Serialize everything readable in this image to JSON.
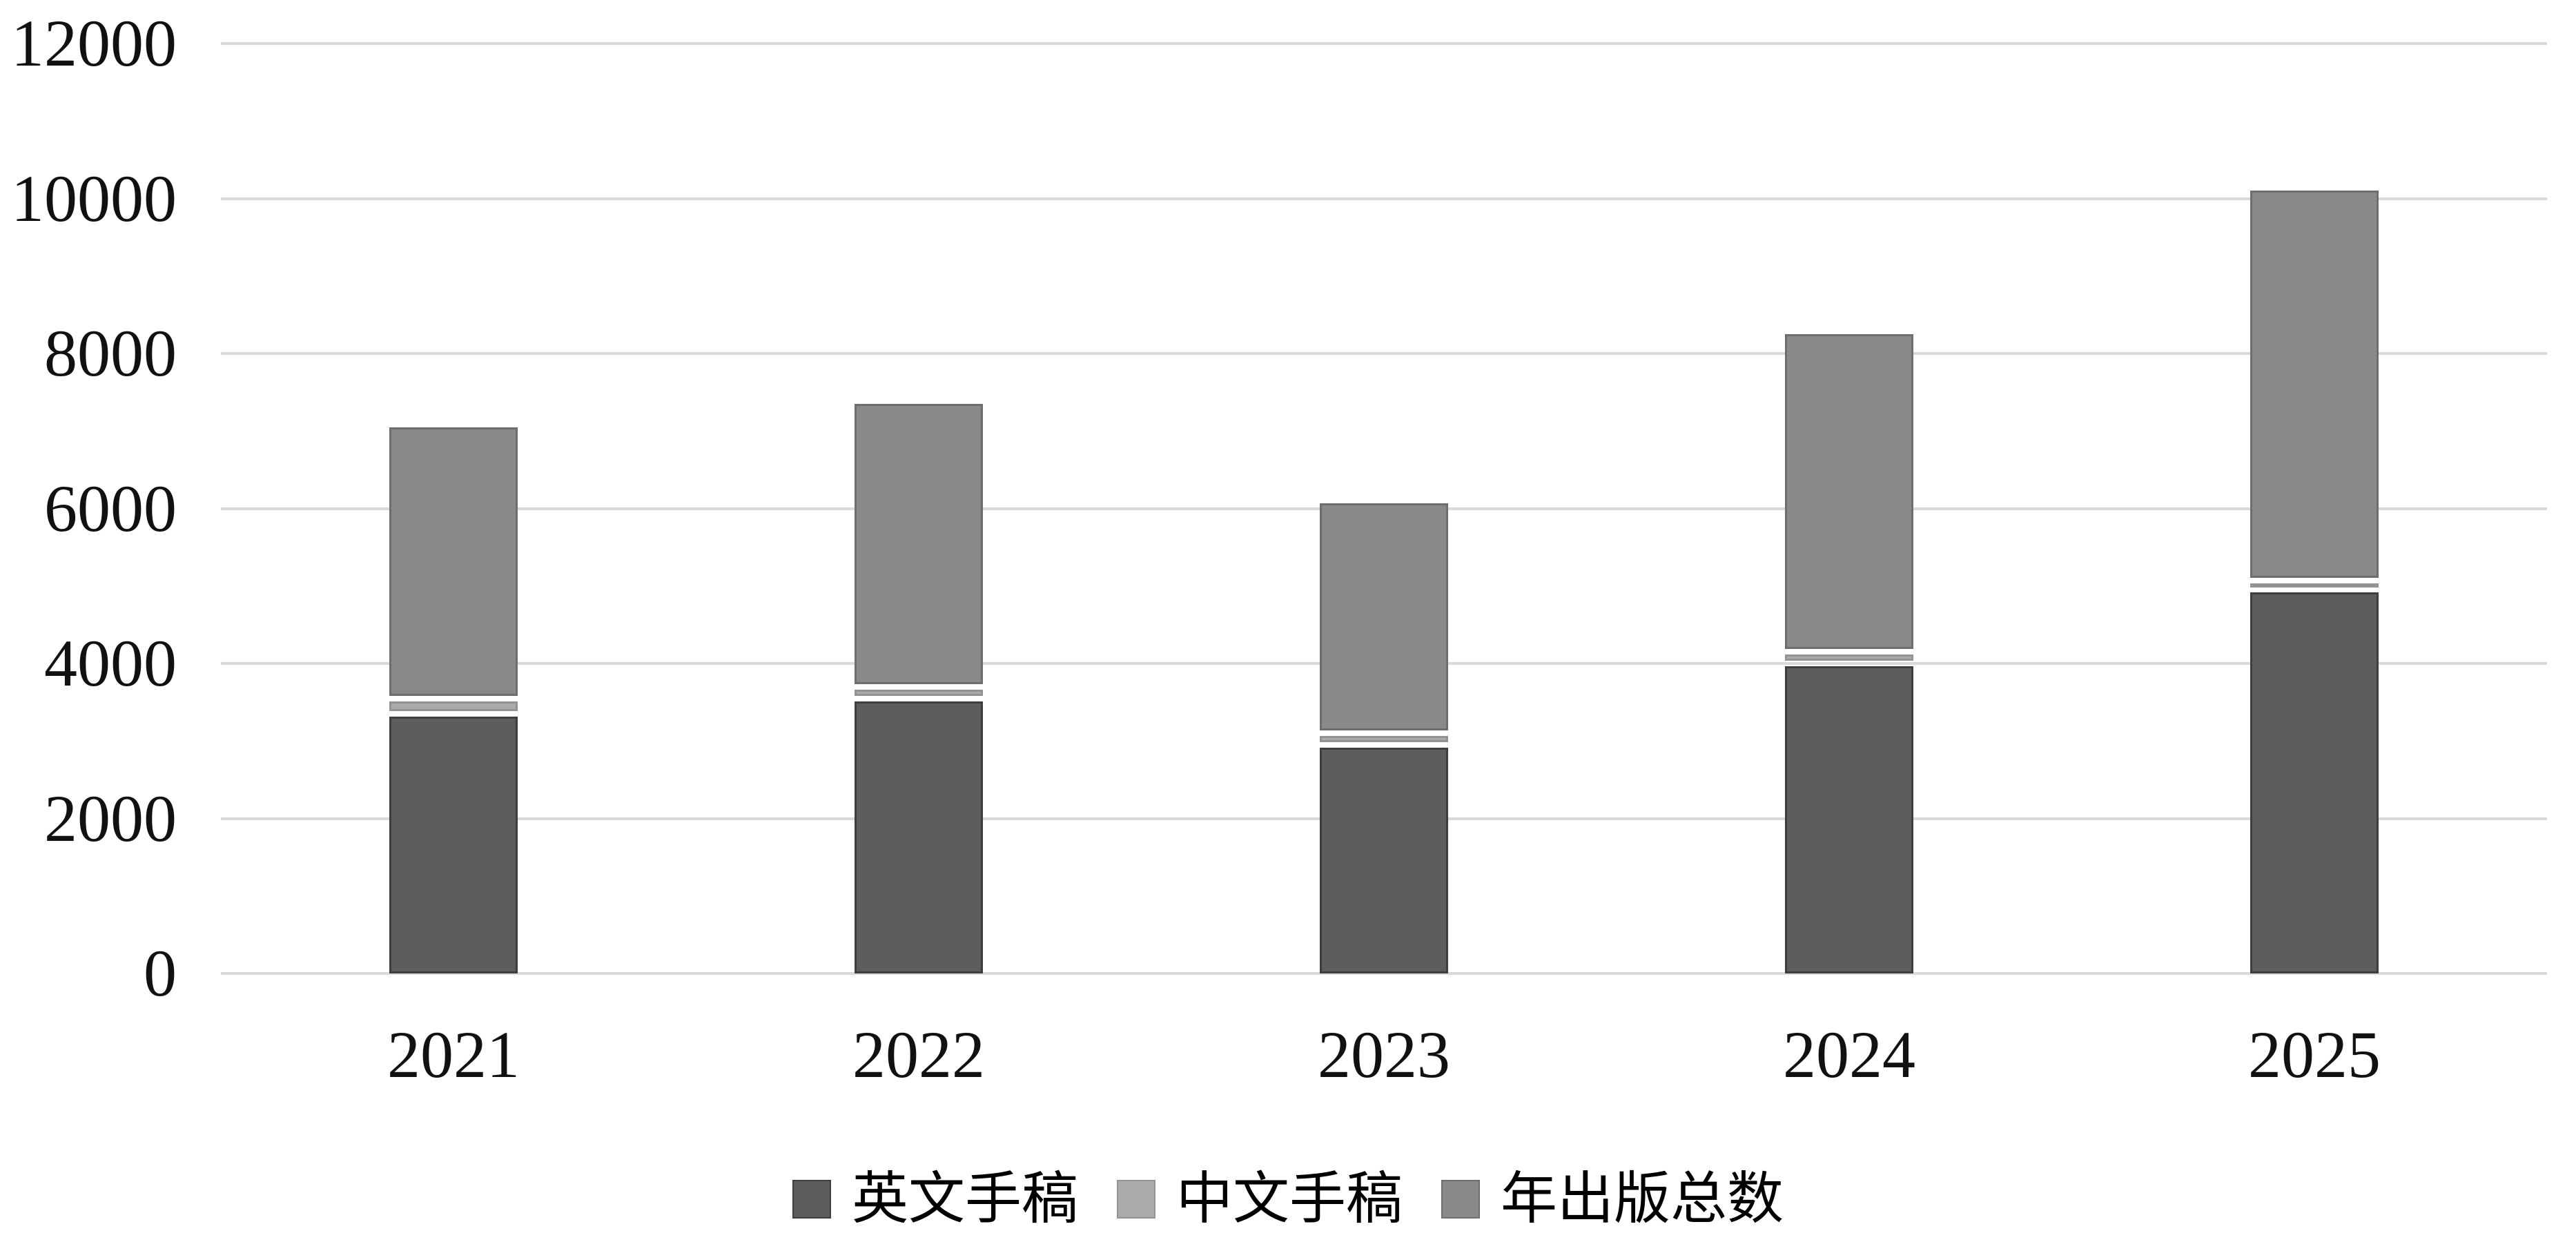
{
  "chart_data": {
    "type": "bar",
    "stacked": true,
    "orientation": "vertical",
    "categories": [
      "2021",
      "2022",
      "2023",
      "2024",
      "2025"
    ],
    "series": [
      {
        "name": "英文手稿",
        "color": "#5d5d5d",
        "border_color": "#3e3e3e",
        "values": [
          3350,
          3550,
          2950,
          4000,
          4950
        ]
      },
      {
        "name": "中文手稿",
        "color": "#ababab",
        "border_color": "#939393",
        "values": [
          200,
          150,
          150,
          150,
          120
        ]
      },
      {
        "name": "年出版总数",
        "color": "#898989",
        "border_color": "#6e6e6e",
        "values": [
          3500,
          3650,
          2970,
          4100,
          5030
        ]
      }
    ],
    "stack_totals": [
      7050,
      7350,
      6070,
      8250,
      10100
    ],
    "title": "",
    "xlabel": "",
    "ylabel": "",
    "ylim": [
      0,
      12000
    ],
    "ytick_interval": 2000,
    "yticks": [
      "0",
      "2000",
      "4000",
      "6000",
      "8000",
      "10000",
      "12000"
    ],
    "grid": true,
    "gridline_color": "#d9d9d9",
    "background_color": "#ffffff",
    "tick_label_color": "#111111",
    "legend_position": "bottom",
    "legend_labels": [
      "英文手稿",
      "中文手稿",
      "年出版总数"
    ]
  }
}
